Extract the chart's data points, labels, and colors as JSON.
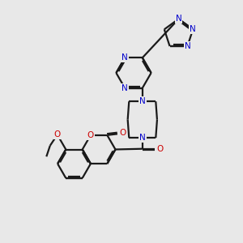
{
  "background_color": "#e8e8e8",
  "bond_color": "#1a1a1a",
  "nitrogen_color": "#0000cc",
  "oxygen_color": "#cc0000",
  "bond_width": 1.6,
  "figsize": [
    3.0,
    3.0
  ],
  "dpi": 100,
  "xlim": [
    0,
    10
  ],
  "ylim": [
    0,
    10
  ]
}
